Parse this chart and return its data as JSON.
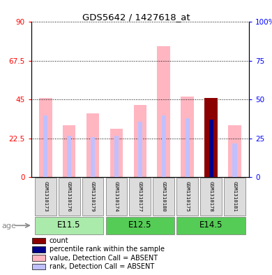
{
  "title": "GDS5642 / 1427618_at",
  "samples": [
    "GSM1310173",
    "GSM1310176",
    "GSM1310179",
    "GSM1310174",
    "GSM1310177",
    "GSM1310180",
    "GSM1310175",
    "GSM1310178",
    "GSM1310181"
  ],
  "value_absent": [
    46,
    30,
    37,
    28,
    42,
    76,
    47,
    0,
    30
  ],
  "rank_absent": [
    40,
    27,
    26,
    27,
    36,
    40,
    38,
    0,
    22
  ],
  "count_value": [
    0,
    0,
    0,
    0,
    0,
    0,
    0,
    46,
    0
  ],
  "percentile_rank": [
    0,
    0,
    0,
    0,
    0,
    0,
    0,
    37,
    0
  ],
  "left_ylim": [
    0,
    90
  ],
  "right_ylim": [
    0,
    100
  ],
  "left_yticks": [
    0,
    22.5,
    45,
    67.5,
    90
  ],
  "left_yticklabels": [
    "0",
    "22.5",
    "45",
    "67.5",
    "90"
  ],
  "right_yticks": [
    0,
    25,
    50,
    75,
    100
  ],
  "right_yticklabels": [
    "0",
    "25",
    "50",
    "75",
    "100%"
  ],
  "color_value_absent": "#FFB6C1",
  "color_rank_absent": "#C0C0FF",
  "color_count": "#8B0000",
  "color_percentile": "#00008B",
  "age_groups": [
    {
      "label": "E11.5",
      "start": 0,
      "end": 2,
      "color": "#AAEAAA"
    },
    {
      "label": "E12.5",
      "start": 3,
      "end": 5,
      "color": "#55CC55"
    },
    {
      "label": "E14.5",
      "start": 6,
      "end": 8,
      "color": "#55CC55"
    }
  ],
  "legend_items": [
    {
      "color": "#8B0000",
      "label": "count"
    },
    {
      "color": "#00008B",
      "label": "percentile rank within the sample"
    },
    {
      "color": "#FFB6C1",
      "label": "value, Detection Call = ABSENT"
    },
    {
      "color": "#C0C0FF",
      "label": "rank, Detection Call = ABSENT"
    }
  ]
}
